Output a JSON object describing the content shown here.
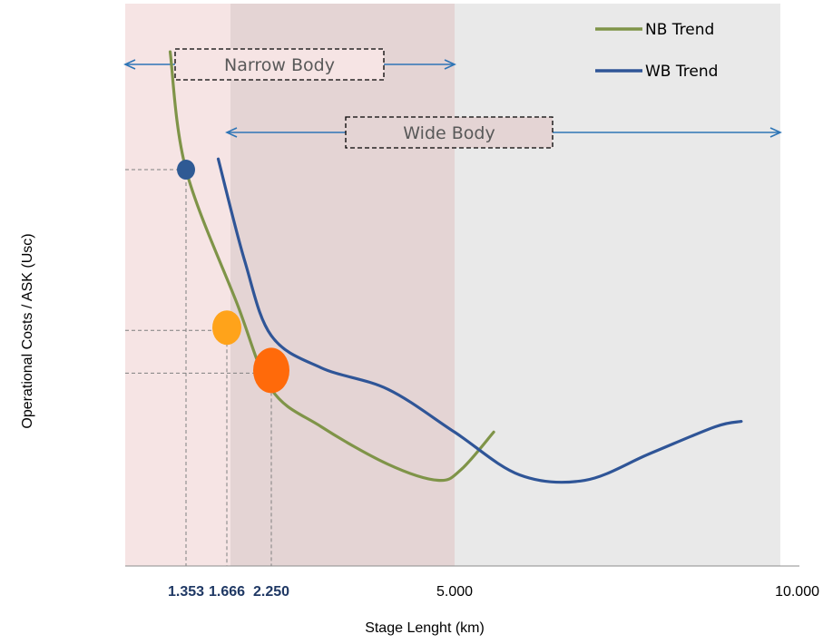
{
  "chart_data": {
    "type": "line",
    "xlabel": "Stage Lenght (km)",
    "ylabel": "Operational Costs / ASK (Usc)",
    "xlim": [
      0,
      10000
    ],
    "x_ticks": [
      {
        "value": 1353,
        "label": "1.353",
        "bold": true
      },
      {
        "value": 1666,
        "label": "1.666",
        "bold": true
      },
      {
        "value": 2250,
        "label": "2.250",
        "bold": true
      },
      {
        "value": 5000,
        "label": "5.000",
        "bold": false
      },
      {
        "value": 10000,
        "label": "10.000",
        "bold": false
      }
    ],
    "regions": [
      {
        "name": "narrow-body-zone",
        "from": 0,
        "to": 1666,
        "color": "#f6e4e4"
      },
      {
        "name": "overlap-zone",
        "from": 1666,
        "to": 5000,
        "color": "#e4d4d4"
      },
      {
        "name": "wide-body-zone",
        "from": 5000,
        "to": 10000,
        "color": "#e9e9e9"
      }
    ],
    "range_arrows": [
      {
        "label": "Narrow Body",
        "from": 0,
        "to": 5000,
        "color": "#2e75b6"
      },
      {
        "label": "Wide Body",
        "from": 1666,
        "to": 10000,
        "color": "#2e75b6"
      }
    ],
    "series": [
      {
        "name": "NB Trend",
        "color": "#7f9448",
        "points": [
          [
            1000,
            0.96
          ],
          [
            1353,
            0.74
          ],
          [
            1800,
            0.49
          ],
          [
            2250,
            0.33
          ],
          [
            3000,
            0.26
          ],
          [
            4000,
            0.19
          ],
          [
            4750,
            0.16
          ],
          [
            5100,
            0.18
          ],
          [
            5600,
            0.25
          ]
        ]
      },
      {
        "name": "WB Trend",
        "color": "#2f5597",
        "points": [
          [
            1600,
            0.76
          ],
          [
            1900,
            0.57
          ],
          [
            2250,
            0.43
          ],
          [
            3000,
            0.37
          ],
          [
            4000,
            0.33
          ],
          [
            5000,
            0.25
          ],
          [
            6000,
            0.17
          ],
          [
            7000,
            0.16
          ],
          [
            8000,
            0.21
          ],
          [
            9000,
            0.26
          ],
          [
            9400,
            0.27
          ]
        ]
      }
    ],
    "markers": [
      {
        "x": 1353,
        "y": 0.74,
        "color": "#2f5a94",
        "size": "small"
      },
      {
        "x": 1666,
        "y": 0.44,
        "color": "#ffa31a",
        "size": "medium"
      },
      {
        "x": 2250,
        "y": 0.36,
        "color": "#ff6a0a",
        "size": "large"
      }
    ],
    "ylim": [
      0,
      1.05
    ],
    "grid": false,
    "legend_position": "top-right"
  }
}
